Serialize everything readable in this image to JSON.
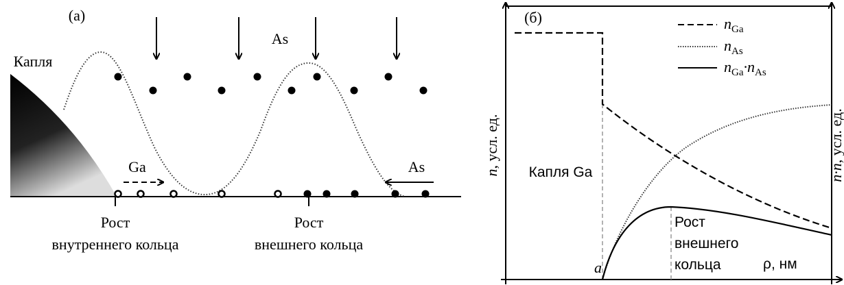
{
  "panel_a": {
    "label": "(a)",
    "droplet": "Капля",
    "flux_top": "As",
    "flux_ga": "Ga",
    "flux_as": "As",
    "inner": {
      "line1": "Рост",
      "line2": "внутреннего кольца"
    },
    "outer": {
      "line1": "Рост",
      "line2": "внешнего кольца"
    }
  },
  "panel_b": {
    "label": "(б)",
    "legend": [
      [
        "n",
        "Ga"
      ],
      [
        "n",
        "As"
      ],
      [
        "n",
        "Ga",
        "·n",
        "As"
      ]
    ],
    "y_label": {
      "italic": "n",
      "rest": ", усл. ед."
    },
    "y2_label": {
      "italic": "n·n",
      "rest": ", усл. ед."
    },
    "droplet": "Капля Ga",
    "growth": [
      "Рост",
      "внешнего",
      "кольца"
    ],
    "point": "a",
    "x_label": "ρ, нм"
  }
}
